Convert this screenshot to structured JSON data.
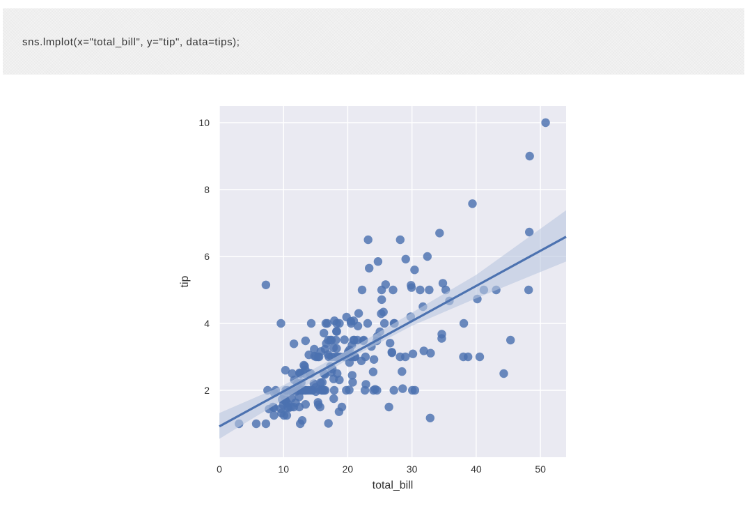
{
  "code_cell": {
    "source": "sns.lmplot(x=\"total_bill\", y=\"tip\", data=tips);"
  },
  "colors": {
    "axes_bg": "#eaeaf2",
    "grid": "#ffffff",
    "points": "#4c72b0",
    "band": "#b9c6e0",
    "text": "#333333"
  },
  "chart_data": {
    "type": "scatter",
    "xlabel": "total_bill",
    "ylabel": "tip",
    "xlim": [
      0,
      54
    ],
    "ylim": [
      0,
      10.5
    ],
    "xticks": [
      0,
      10,
      20,
      30,
      40,
      50
    ],
    "yticks": [
      2,
      4,
      6,
      8,
      10
    ],
    "grid": true,
    "regression": {
      "intercept": 0.92,
      "slope": 0.105,
      "ci_x": [
        0,
        10,
        20,
        30,
        40,
        54
      ],
      "ci_lower": [
        0.55,
        1.72,
        2.92,
        3.93,
        4.75,
        5.85
      ],
      "ci_upper": [
        1.32,
        2.15,
        3.19,
        4.32,
        5.45,
        7.38
      ]
    },
    "points": [
      [
        3.07,
        1.0
      ],
      [
        5.75,
        1.0
      ],
      [
        7.25,
        1.0
      ],
      [
        7.25,
        5.15
      ],
      [
        7.51,
        2.0
      ],
      [
        7.74,
        1.44
      ],
      [
        8.35,
        1.5
      ],
      [
        8.51,
        1.25
      ],
      [
        8.52,
        1.48
      ],
      [
        8.58,
        1.92
      ],
      [
        8.77,
        2.0
      ],
      [
        9.55,
        1.45
      ],
      [
        9.6,
        4.0
      ],
      [
        9.68,
        1.32
      ],
      [
        9.78,
        1.73
      ],
      [
        9.94,
        1.56
      ],
      [
        10.07,
        1.83
      ],
      [
        10.07,
        1.25
      ],
      [
        10.27,
        1.71
      ],
      [
        10.29,
        2.6
      ],
      [
        10.33,
        1.67
      ],
      [
        10.34,
        2.0
      ],
      [
        10.34,
        1.66
      ],
      [
        10.51,
        1.25
      ],
      [
        10.59,
        1.61
      ],
      [
        10.63,
        2.0
      ],
      [
        10.65,
        1.5
      ],
      [
        10.77,
        1.47
      ],
      [
        11.02,
        1.98
      ],
      [
        11.17,
        1.5
      ],
      [
        11.24,
        1.76
      ],
      [
        11.35,
        2.5
      ],
      [
        11.38,
        2.0
      ],
      [
        11.59,
        1.5
      ],
      [
        11.61,
        3.39
      ],
      [
        11.69,
        2.31
      ],
      [
        11.87,
        1.63
      ],
      [
        12.02,
        1.97
      ],
      [
        12.16,
        2.2
      ],
      [
        12.26,
        2.0
      ],
      [
        12.43,
        1.8
      ],
      [
        12.46,
        1.5
      ],
      [
        12.48,
        2.52
      ],
      [
        12.54,
        2.5
      ],
      [
        12.6,
        1.0
      ],
      [
        12.66,
        2.5
      ],
      [
        12.69,
        2.0
      ],
      [
        12.74,
        2.01
      ],
      [
        12.76,
        2.23
      ],
      [
        12.9,
        1.1
      ],
      [
        13.0,
        2.0
      ],
      [
        13.03,
        2.0
      ],
      [
        13.13,
        2.0
      ],
      [
        13.16,
        2.75
      ],
      [
        13.27,
        2.5
      ],
      [
        13.28,
        2.72
      ],
      [
        13.37,
        2.0
      ],
      [
        13.39,
        2.61
      ],
      [
        13.42,
        1.58
      ],
      [
        13.42,
        3.48
      ],
      [
        13.51,
        2.0
      ],
      [
        13.81,
        2.0
      ],
      [
        13.94,
        3.06
      ],
      [
        14.07,
        2.5
      ],
      [
        14.15,
        2.0
      ],
      [
        14.26,
        2.5
      ],
      [
        14.31,
        4.0
      ],
      [
        14.48,
        2.0
      ],
      [
        14.52,
        2.0
      ],
      [
        14.73,
        2.2
      ],
      [
        14.78,
        3.23
      ],
      [
        14.83,
        3.02
      ],
      [
        15.01,
        2.09
      ],
      [
        15.04,
        1.96
      ],
      [
        15.06,
        3.0
      ],
      [
        15.36,
        1.64
      ],
      [
        15.38,
        3.0
      ],
      [
        15.42,
        1.57
      ],
      [
        15.48,
        2.02
      ],
      [
        15.53,
        3.0
      ],
      [
        15.69,
        1.5
      ],
      [
        15.77,
        2.23
      ],
      [
        15.81,
        3.16
      ],
      [
        15.95,
        2.0
      ],
      [
        15.98,
        2.03
      ],
      [
        16.0,
        2.0
      ],
      [
        16.04,
        2.24
      ],
      [
        16.21,
        2.0
      ],
      [
        16.27,
        2.5
      ],
      [
        16.29,
        3.71
      ],
      [
        16.31,
        2.0
      ],
      [
        16.4,
        2.5
      ],
      [
        16.45,
        2.47
      ],
      [
        16.47,
        3.23
      ],
      [
        16.49,
        2.0
      ],
      [
        16.58,
        4.0
      ],
      [
        16.66,
        3.4
      ],
      [
        16.82,
        4.0
      ],
      [
        16.93,
        3.07
      ],
      [
        16.97,
        3.5
      ],
      [
        16.99,
        1.01
      ],
      [
        17.07,
        3.0
      ],
      [
        17.29,
        2.71
      ],
      [
        17.31,
        3.5
      ],
      [
        17.46,
        2.54
      ],
      [
        17.47,
        3.5
      ],
      [
        17.51,
        3.0
      ],
      [
        17.59,
        2.64
      ],
      [
        17.78,
        3.27
      ],
      [
        17.81,
        2.34
      ],
      [
        17.82,
        1.75
      ],
      [
        17.89,
        2.0
      ],
      [
        17.92,
        4.08
      ],
      [
        18.04,
        3.0
      ],
      [
        18.15,
        3.5
      ],
      [
        18.24,
        3.76
      ],
      [
        18.26,
        3.25
      ],
      [
        18.28,
        4.0
      ],
      [
        18.29,
        3.76
      ],
      [
        18.35,
        2.5
      ],
      [
        18.43,
        3.0
      ],
      [
        18.64,
        1.36
      ],
      [
        18.69,
        2.31
      ],
      [
        18.71,
        4.0
      ],
      [
        18.78,
        3.0
      ],
      [
        19.08,
        1.5
      ],
      [
        19.44,
        3.0
      ],
      [
        19.49,
        3.51
      ],
      [
        19.65,
        3.0
      ],
      [
        19.77,
        2.0
      ],
      [
        19.81,
        4.19
      ],
      [
        20.08,
        3.15
      ],
      [
        20.23,
        2.01
      ],
      [
        20.27,
        2.83
      ],
      [
        20.29,
        3.21
      ],
      [
        20.45,
        3.0
      ],
      [
        20.49,
        4.06
      ],
      [
        20.53,
        4.0
      ],
      [
        20.65,
        3.35
      ],
      [
        20.69,
        2.45
      ],
      [
        20.76,
        2.24
      ],
      [
        20.9,
        3.5
      ],
      [
        20.92,
        4.08
      ],
      [
        21.01,
        3.5
      ],
      [
        21.01,
        3.0
      ],
      [
        21.16,
        3.0
      ],
      [
        21.5,
        3.5
      ],
      [
        21.58,
        3.92
      ],
      [
        21.7,
        4.3
      ],
      [
        22.12,
        2.88
      ],
      [
        22.23,
        5.0
      ],
      [
        22.42,
        3.48
      ],
      [
        22.49,
        3.5
      ],
      [
        22.67,
        2.0
      ],
      [
        22.76,
        3.0
      ],
      [
        22.82,
        2.18
      ],
      [
        23.1,
        4.0
      ],
      [
        23.17,
        6.5
      ],
      [
        23.33,
        5.65
      ],
      [
        23.68,
        3.31
      ],
      [
        23.95,
        2.55
      ],
      [
        24.01,
        2.0
      ],
      [
        24.08,
        2.92
      ],
      [
        24.27,
        2.03
      ],
      [
        24.52,
        3.48
      ],
      [
        24.55,
        2.0
      ],
      [
        24.59,
        3.61
      ],
      [
        24.71,
        5.85
      ],
      [
        25.0,
        3.75
      ],
      [
        25.21,
        4.29
      ],
      [
        25.28,
        5.0
      ],
      [
        25.29,
        4.71
      ],
      [
        25.56,
        4.34
      ],
      [
        25.71,
        4.0
      ],
      [
        25.89,
        5.16
      ],
      [
        26.41,
        1.5
      ],
      [
        26.59,
        3.41
      ],
      [
        26.86,
        3.14
      ],
      [
        26.88,
        3.12
      ],
      [
        27.05,
        5.0
      ],
      [
        27.18,
        2.0
      ],
      [
        27.2,
        4.0
      ],
      [
        27.28,
        4.0
      ],
      [
        28.15,
        3.0
      ],
      [
        28.17,
        6.5
      ],
      [
        28.44,
        2.56
      ],
      [
        28.55,
        2.05
      ],
      [
        28.97,
        3.0
      ],
      [
        29.03,
        5.92
      ],
      [
        29.8,
        4.2
      ],
      [
        29.85,
        5.14
      ],
      [
        29.93,
        5.07
      ],
      [
        30.06,
        2.0
      ],
      [
        30.14,
        3.09
      ],
      [
        30.4,
        5.6
      ],
      [
        30.46,
        2.0
      ],
      [
        31.27,
        5.0
      ],
      [
        31.71,
        4.5
      ],
      [
        31.85,
        3.18
      ],
      [
        32.4,
        6.0
      ],
      [
        32.68,
        5.0
      ],
      [
        32.83,
        1.17
      ],
      [
        32.9,
        3.11
      ],
      [
        34.3,
        6.7
      ],
      [
        34.63,
        3.55
      ],
      [
        34.65,
        3.68
      ],
      [
        34.81,
        5.2
      ],
      [
        35.26,
        5.0
      ],
      [
        35.83,
        4.67
      ],
      [
        38.07,
        4.0
      ],
      [
        38.01,
        3.0
      ],
      [
        38.73,
        3.0
      ],
      [
        39.42,
        7.58
      ],
      [
        40.17,
        4.73
      ],
      [
        40.55,
        3.0
      ],
      [
        41.19,
        5.0
      ],
      [
        43.11,
        5.0
      ],
      [
        44.3,
        2.5
      ],
      [
        45.35,
        3.5
      ],
      [
        48.17,
        5.0
      ],
      [
        48.27,
        6.73
      ],
      [
        48.33,
        9.0
      ],
      [
        50.81,
        10.0
      ]
    ]
  }
}
